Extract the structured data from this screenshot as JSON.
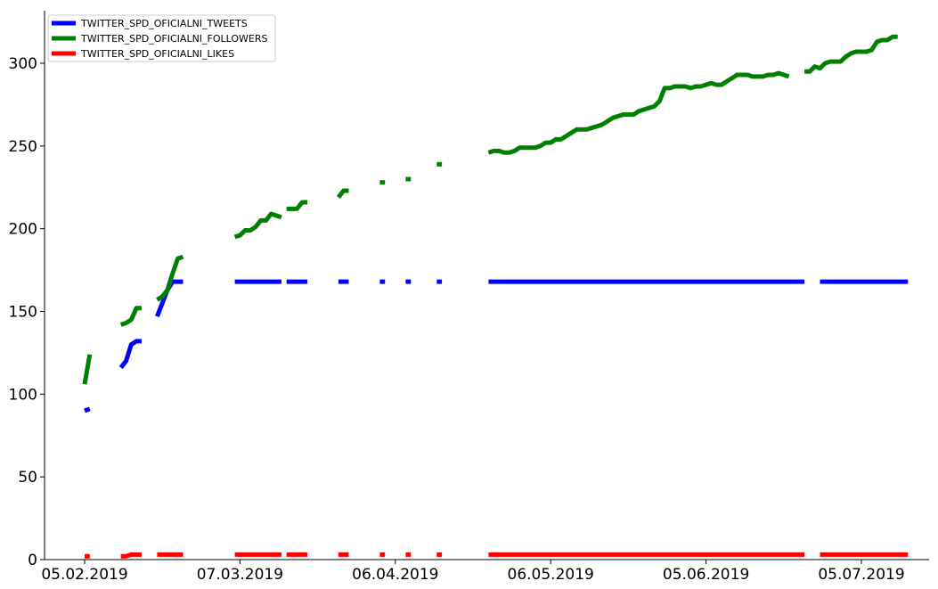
{
  "chart_data": {
    "type": "line",
    "title": "",
    "xlabel": "",
    "ylabel": "",
    "x_tick_labels": [
      "05.02.2019",
      "07.03.2019",
      "06.04.2019",
      "06.05.2019",
      "05.06.2019",
      "05.07.2019"
    ],
    "x_tick_dates": [
      "2019-02-05",
      "2019-03-07",
      "2019-04-06",
      "2019-05-06",
      "2019-06-05",
      "2019-07-05"
    ],
    "xlim": [
      "2019-02-04",
      "2019-07-15"
    ],
    "ylim": [
      0,
      330
    ],
    "y_ticks": [
      0,
      50,
      100,
      150,
      200,
      250,
      300
    ],
    "grid": false,
    "legend_position": "top-left",
    "series": [
      {
        "name": "TWITTER_SPD_OFICIALNI_TWEETS",
        "color": "#0000ff",
        "segments": [
          [
            [
              "2019-02-05",
              90
            ],
            [
              "2019-02-06",
              91
            ]
          ],
          [
            [
              "2019-02-12",
              116
            ],
            [
              "2019-02-13",
              120
            ],
            [
              "2019-02-14",
              130
            ],
            [
              "2019-02-15",
              132
            ],
            [
              "2019-02-16",
              132
            ]
          ],
          [
            [
              "2019-02-19",
              147
            ],
            [
              "2019-02-20",
              155
            ],
            [
              "2019-02-21",
              163
            ],
            [
              "2019-02-22",
              168
            ],
            [
              "2019-02-23",
              168
            ],
            [
              "2019-02-24",
              168
            ]
          ],
          [
            [
              "2019-03-06",
              168
            ],
            [
              "2019-03-15",
              168
            ]
          ],
          [
            [
              "2019-03-16",
              168
            ],
            [
              "2019-03-20",
              168
            ]
          ],
          [
            [
              "2019-03-26",
              168
            ],
            [
              "2019-03-28",
              168
            ]
          ],
          [
            [
              "2019-04-03",
              168
            ],
            [
              "2019-04-04",
              168
            ]
          ],
          [
            [
              "2019-04-08",
              168
            ],
            [
              "2019-04-09",
              168
            ]
          ],
          [
            [
              "2019-04-14",
              168
            ],
            [
              "2019-04-15",
              168
            ]
          ],
          [
            [
              "2019-04-24",
              168
            ],
            [
              "2019-06-24",
              168
            ]
          ],
          [
            [
              "2019-06-27",
              168
            ],
            [
              "2019-07-14",
              168
            ]
          ]
        ]
      },
      {
        "name": "TWITTER_SPD_OFICIALNI_FOLLOWERS",
        "color": "#008000",
        "segments": [
          [
            [
              "2019-02-05",
              106
            ],
            [
              "2019-02-06",
              124
            ]
          ],
          [
            [
              "2019-02-12",
              142
            ],
            [
              "2019-02-13",
              143
            ],
            [
              "2019-02-14",
              145
            ],
            [
              "2019-02-15",
              152
            ],
            [
              "2019-02-16",
              152
            ]
          ],
          [
            [
              "2019-02-19",
              157
            ],
            [
              "2019-02-20",
              159
            ],
            [
              "2019-02-21",
              163
            ],
            [
              "2019-02-22",
              173
            ],
            [
              "2019-02-23",
              182
            ],
            [
              "2019-02-24",
              183
            ]
          ],
          [
            [
              "2019-03-06",
              195
            ],
            [
              "2019-03-07",
              196
            ],
            [
              "2019-03-08",
              199
            ],
            [
              "2019-03-09",
              199
            ],
            [
              "2019-03-10",
              201
            ],
            [
              "2019-03-11",
              205
            ],
            [
              "2019-03-12",
              205
            ],
            [
              "2019-03-13",
              209
            ],
            [
              "2019-03-15",
              207
            ]
          ],
          [
            [
              "2019-03-16",
              212
            ],
            [
              "2019-03-18",
              212
            ],
            [
              "2019-03-19",
              216
            ],
            [
              "2019-03-20",
              216
            ]
          ],
          [
            [
              "2019-03-26",
              219
            ],
            [
              "2019-03-27",
              223
            ],
            [
              "2019-03-28",
              223
            ]
          ],
          [
            [
              "2019-04-03",
              228
            ],
            [
              "2019-04-04",
              228
            ]
          ],
          [
            [
              "2019-04-08",
              230
            ],
            [
              "2019-04-09",
              230
            ]
          ],
          [
            [
              "2019-04-14",
              239
            ],
            [
              "2019-04-15",
              239
            ]
          ],
          [
            [
              "2019-04-24",
              246
            ],
            [
              "2019-04-25",
              247
            ],
            [
              "2019-04-26",
              247
            ],
            [
              "2019-04-27",
              246
            ],
            [
              "2019-04-28",
              246
            ],
            [
              "2019-04-29",
              247
            ],
            [
              "2019-04-30",
              249
            ],
            [
              "2019-05-02",
              249
            ],
            [
              "2019-05-03",
              249
            ],
            [
              "2019-05-04",
              250
            ],
            [
              "2019-05-05",
              252
            ],
            [
              "2019-05-06",
              252
            ],
            [
              "2019-05-07",
              254
            ],
            [
              "2019-05-08",
              254
            ],
            [
              "2019-05-09",
              256
            ],
            [
              "2019-05-10",
              258
            ],
            [
              "2019-05-11",
              260
            ],
            [
              "2019-05-13",
              260
            ],
            [
              "2019-05-14",
              261
            ],
            [
              "2019-05-15",
              262
            ],
            [
              "2019-05-16",
              263
            ],
            [
              "2019-05-17",
              265
            ],
            [
              "2019-05-18",
              267
            ],
            [
              "2019-05-19",
              268
            ],
            [
              "2019-05-20",
              269
            ],
            [
              "2019-05-22",
              269
            ],
            [
              "2019-05-23",
              271
            ],
            [
              "2019-05-24",
              272
            ],
            [
              "2019-05-25",
              273
            ],
            [
              "2019-05-26",
              274
            ],
            [
              "2019-05-27",
              277
            ],
            [
              "2019-05-28",
              285
            ],
            [
              "2019-05-29",
              285
            ],
            [
              "2019-05-30",
              286
            ],
            [
              "2019-06-01",
              286
            ],
            [
              "2019-06-02",
              285
            ],
            [
              "2019-06-03",
              286
            ],
            [
              "2019-06-04",
              286
            ],
            [
              "2019-06-05",
              287
            ],
            [
              "2019-06-06",
              288
            ],
            [
              "2019-06-07",
              287
            ],
            [
              "2019-06-08",
              287
            ],
            [
              "2019-06-09",
              289
            ],
            [
              "2019-06-10",
              291
            ],
            [
              "2019-06-11",
              293
            ],
            [
              "2019-06-13",
              293
            ],
            [
              "2019-06-14",
              292
            ],
            [
              "2019-06-16",
              292
            ],
            [
              "2019-06-17",
              293
            ],
            [
              "2019-06-18",
              293
            ],
            [
              "2019-06-19",
              294
            ],
            [
              "2019-06-20",
              293
            ],
            [
              "2019-06-21",
              292
            ]
          ],
          [
            [
              "2019-06-24",
              295
            ],
            [
              "2019-06-25",
              295
            ],
            [
              "2019-06-26",
              298
            ],
            [
              "2019-06-27",
              297
            ],
            [
              "2019-06-28",
              300
            ],
            [
              "2019-06-29",
              301
            ],
            [
              "2019-07-01",
              301
            ],
            [
              "2019-07-02",
              304
            ],
            [
              "2019-07-03",
              306
            ],
            [
              "2019-07-04",
              307
            ],
            [
              "2019-07-06",
              307
            ],
            [
              "2019-07-07",
              308
            ],
            [
              "2019-07-08",
              313
            ],
            [
              "2019-07-09",
              314
            ],
            [
              "2019-07-10",
              314
            ],
            [
              "2019-07-11",
              316
            ],
            [
              "2019-07-12",
              316
            ]
          ]
        ]
      },
      {
        "name": "TWITTER_SPD_OFICIALNI_LIKES",
        "color": "#ff0000",
        "segments": [
          [
            [
              "2019-02-05",
              2
            ],
            [
              "2019-02-06",
              2
            ]
          ],
          [
            [
              "2019-02-12",
              2
            ],
            [
              "2019-02-13",
              2
            ],
            [
              "2019-02-14",
              3
            ],
            [
              "2019-02-16",
              3
            ]
          ],
          [
            [
              "2019-02-19",
              3
            ],
            [
              "2019-02-24",
              3
            ]
          ],
          [
            [
              "2019-03-06",
              3
            ],
            [
              "2019-03-15",
              3
            ]
          ],
          [
            [
              "2019-03-16",
              3
            ],
            [
              "2019-03-20",
              3
            ]
          ],
          [
            [
              "2019-03-26",
              3
            ],
            [
              "2019-03-28",
              3
            ]
          ],
          [
            [
              "2019-04-03",
              3
            ],
            [
              "2019-04-04",
              3
            ]
          ],
          [
            [
              "2019-04-08",
              3
            ],
            [
              "2019-04-09",
              3
            ]
          ],
          [
            [
              "2019-04-14",
              3
            ],
            [
              "2019-04-15",
              3
            ]
          ],
          [
            [
              "2019-04-24",
              3
            ],
            [
              "2019-06-24",
              3
            ]
          ],
          [
            [
              "2019-06-27",
              3
            ],
            [
              "2019-07-14",
              3
            ]
          ]
        ]
      }
    ]
  }
}
